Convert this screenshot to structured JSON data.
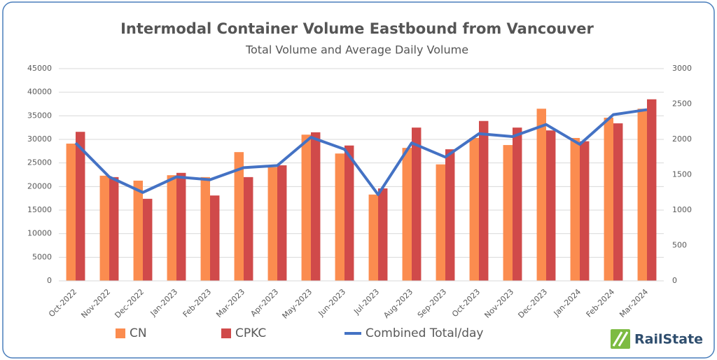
{
  "chart_data": {
    "type": "bar",
    "title": "Intermodal Container Volume Eastbound from Vancouver",
    "subtitle": "Total Volume and Average Daily Volume",
    "categories": [
      "Oct-2022",
      "Nov-2022",
      "Dec-2022",
      "Jan-2023",
      "Feb-2023",
      "Mar-2023",
      "Apr-2023",
      "May-2023",
      "Jun-2023",
      "Jul-2023",
      "Aug-2023",
      "Sep-2023",
      "Oct-2023",
      "Nov-2023",
      "Dec-2023",
      "Jan-2024",
      "Feb-2024",
      "Mar-2024"
    ],
    "series": [
      {
        "name": "CN",
        "color": "#fb8c4f",
        "values": [
          29100,
          22300,
          21250,
          22400,
          22000,
          27300,
          24100,
          31000,
          27000,
          18300,
          28200,
          24700,
          30300,
          28800,
          36500,
          30300,
          34600,
          36500
        ]
      },
      {
        "name": "CPKC",
        "color": "#d04a4a",
        "values": [
          31600,
          22000,
          17400,
          22900,
          18100,
          22000,
          24500,
          31500,
          28700,
          19600,
          32500,
          27900,
          33900,
          32500,
          31900,
          29600,
          33400,
          38500
        ]
      },
      {
        "name": "Combined Total/day",
        "color": "#4472c4",
        "type": "line",
        "axis": "y2",
        "values": [
          1950,
          1470,
          1250,
          1470,
          1430,
          1600,
          1630,
          2030,
          1860,
          1220,
          1950,
          1750,
          2080,
          2040,
          2210,
          1930,
          2350,
          2420
        ]
      }
    ],
    "ylim": [
      0,
      45000
    ],
    "yticks": [
      0,
      5000,
      10000,
      15000,
      20000,
      25000,
      30000,
      35000,
      40000,
      45000
    ],
    "y2lim": [
      0,
      3000
    ],
    "y2ticks": [
      0,
      500,
      1000,
      1500,
      2000,
      2500,
      3000
    ],
    "grid": true,
    "legend": "bottom",
    "logo": "RailState"
  }
}
